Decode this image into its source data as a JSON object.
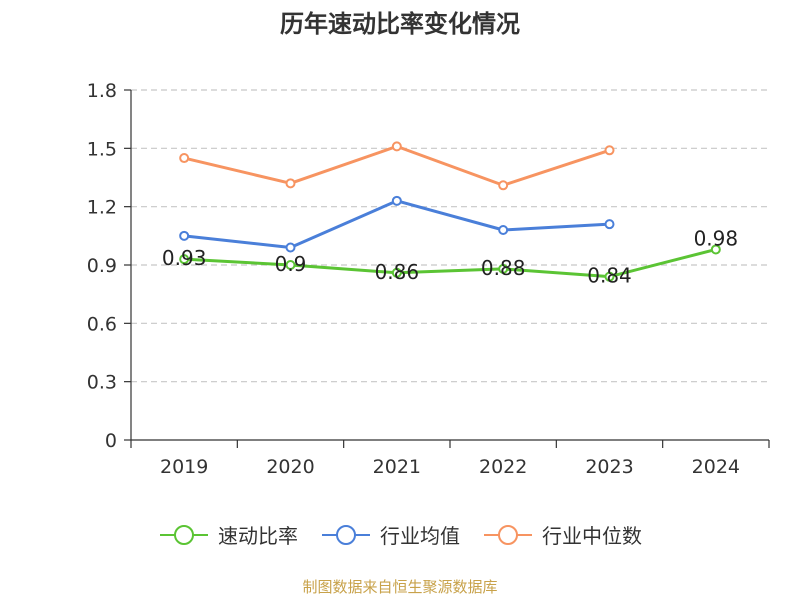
{
  "title": "历年速动比率变化情况",
  "footer": "制图数据来自恒生聚源数据库",
  "chart_data": {
    "type": "line",
    "title": "历年速动比率变化情况",
    "categories": [
      "2019",
      "2020",
      "2021",
      "2022",
      "2023",
      "2024"
    ],
    "ylim": [
      0,
      1.8
    ],
    "yticks": [
      0,
      0.3,
      0.6,
      0.9,
      1.2,
      1.5,
      1.8
    ],
    "ytick_labels": [
      "0",
      "0.3",
      "0.6",
      "0.9",
      "1.2",
      "1.5",
      "1.8"
    ],
    "grid": true,
    "legend_position": "bottom",
    "series": [
      {
        "name": "速动比率",
        "color": "#5bc434",
        "values": [
          0.93,
          0.9,
          0.86,
          0.88,
          0.84,
          0.98
        ],
        "labels": [
          "0.93",
          "0.9",
          "0.86",
          "0.88",
          "0.84",
          "0.98"
        ]
      },
      {
        "name": "行业均值",
        "color": "#4a7fd9",
        "values": [
          1.05,
          0.99,
          1.23,
          1.08,
          1.11,
          null
        ],
        "labels": []
      },
      {
        "name": "行业中位数",
        "color": "#f79461",
        "values": [
          1.45,
          1.32,
          1.51,
          1.31,
          1.49,
          null
        ],
        "labels": []
      }
    ]
  }
}
